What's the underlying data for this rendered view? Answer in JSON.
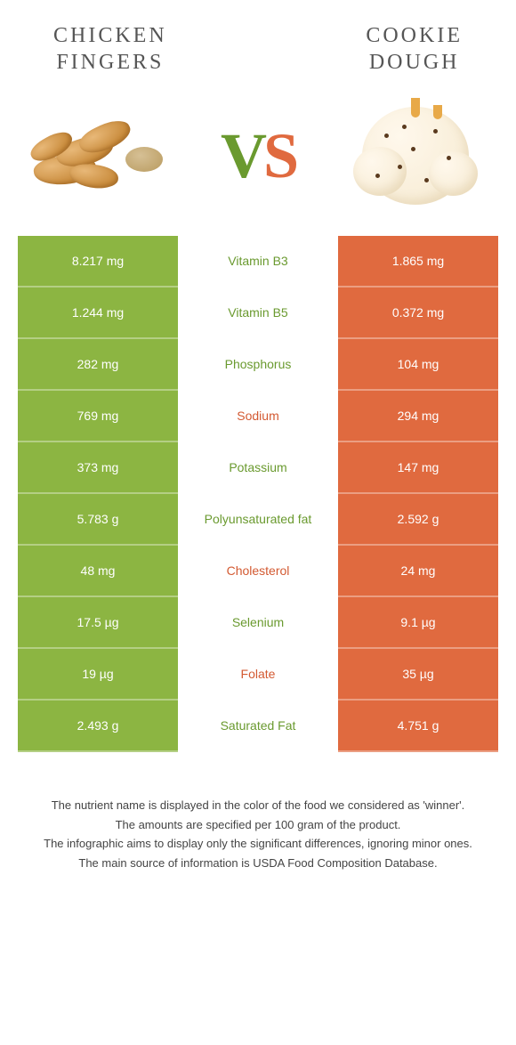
{
  "titles": {
    "left": "CHICKEN\nFINGERS",
    "right": "COOKIE\nDOUGH"
  },
  "vs": {
    "v": "V",
    "s": "S"
  },
  "colors": {
    "left_bg": "#8cb542",
    "right_bg": "#e06a3f",
    "mid_green": "#6a9a2f",
    "mid_orange": "#d35a32"
  },
  "rows": [
    {
      "left": "8.217 mg",
      "name": "Vitamin B3",
      "right": "1.865 mg",
      "winner": "left"
    },
    {
      "left": "1.244 mg",
      "name": "Vitamin B5",
      "right": "0.372 mg",
      "winner": "left"
    },
    {
      "left": "282 mg",
      "name": "Phosphorus",
      "right": "104 mg",
      "winner": "left"
    },
    {
      "left": "769 mg",
      "name": "Sodium",
      "right": "294 mg",
      "winner": "right"
    },
    {
      "left": "373 mg",
      "name": "Potassium",
      "right": "147 mg",
      "winner": "left"
    },
    {
      "left": "5.783 g",
      "name": "Polyunsaturated fat",
      "right": "2.592 g",
      "winner": "left"
    },
    {
      "left": "48 mg",
      "name": "Cholesterol",
      "right": "24 mg",
      "winner": "right"
    },
    {
      "left": "17.5 µg",
      "name": "Selenium",
      "right": "9.1 µg",
      "winner": "left"
    },
    {
      "left": "19 µg",
      "name": "Folate",
      "right": "35 µg",
      "winner": "right"
    },
    {
      "left": "2.493 g",
      "name": "Saturated Fat",
      "right": "4.751 g",
      "winner": "left"
    }
  ],
  "footer": [
    "The nutrient name is displayed in the color of the food we considered as 'winner'.",
    "The amounts are specified per 100 gram of the product.",
    "The infographic aims to display only the significant differences, ignoring minor ones.",
    "The main source of information is USDA Food Composition Database."
  ]
}
